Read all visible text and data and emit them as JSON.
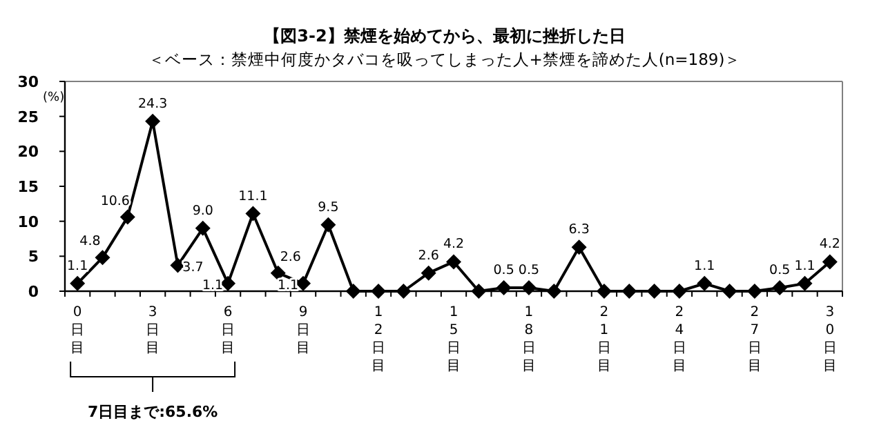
{
  "chart_data": {
    "type": "line",
    "title": "【図3-2】禁煙を始めてから、最初に挫折した日",
    "subtitle": "＜ベース：禁煙中何度かタバコを吸ってしまった人+禁煙を諦めた人(n=189)＞",
    "ylabel": "(%)",
    "categories": [
      "0日目",
      null,
      null,
      "3日目",
      null,
      null,
      "6日目",
      null,
      null,
      "9日目",
      null,
      null,
      "12日目",
      null,
      null,
      "15日目",
      null,
      null,
      "18日目",
      null,
      null,
      "21日目",
      null,
      null,
      "24日目",
      null,
      null,
      "27日目",
      null,
      null,
      "30日目"
    ],
    "values": [
      1.1,
      4.8,
      10.6,
      24.3,
      3.7,
      9.0,
      1.1,
      11.1,
      2.6,
      1.1,
      9.5,
      0,
      0,
      0,
      2.6,
      4.2,
      0,
      0.5,
      0.5,
      0,
      6.3,
      0,
      0,
      0,
      0,
      1.1,
      0,
      0,
      0.5,
      1.1,
      4.2
    ],
    "value_labels": [
      "1.1",
      "4.8",
      "10.6",
      "24.3",
      "3.7",
      "9.0",
      "1.1",
      "11.1",
      "2.6",
      "1.1",
      "9.5",
      null,
      null,
      null,
      "2.6",
      "4.2",
      null,
      "0.5",
      "0.5",
      null,
      "6.3",
      null,
      null,
      null,
      null,
      "1.1",
      null,
      null,
      "0.5",
      "1.1",
      "4.2"
    ],
    "color": "#000000",
    "marker": "diamond",
    "ylim": [
      0,
      30
    ],
    "yticks": [
      0,
      5,
      10,
      15,
      20,
      25,
      30
    ],
    "annotations": [
      "7日目まで:65.6%"
    ]
  }
}
